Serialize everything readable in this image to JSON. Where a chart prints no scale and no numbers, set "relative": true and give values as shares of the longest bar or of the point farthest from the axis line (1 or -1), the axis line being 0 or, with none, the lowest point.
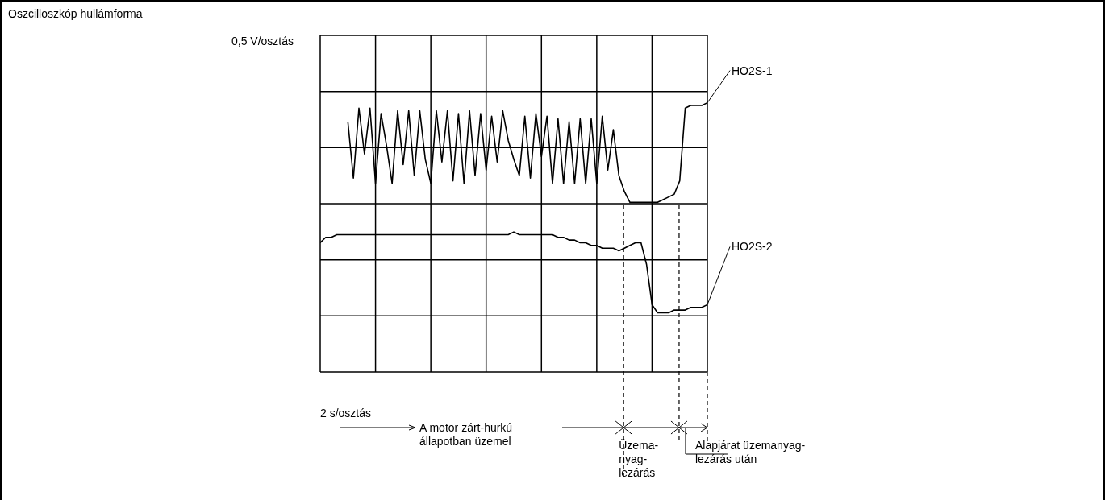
{
  "chart_data": {
    "type": "line",
    "title": "Oszcilloszkóp hullámforma",
    "relative": true,
    "grid": true,
    "marker": "none",
    "line_style": "solid",
    "categories": [
      null,
      null,
      null,
      null,
      null,
      null,
      null,
      null,
      null,
      null,
      null,
      null,
      null,
      null,
      null,
      null,
      null,
      null,
      null,
      null,
      null,
      null,
      null,
      null,
      null,
      null,
      null,
      null,
      null,
      null,
      null,
      null,
      null,
      null,
      null,
      null,
      null,
      null,
      null,
      null,
      null,
      null,
      null,
      null,
      null,
      null,
      null,
      null,
      null,
      null,
      null,
      null,
      null,
      null,
      null,
      null,
      null,
      null,
      null,
      null,
      null,
      null,
      null,
      null,
      null,
      null,
      null,
      null,
      null,
      null,
      null
    ],
    "series": [
      {
        "name": "HO2S-1",
        "color": "#000000",
        "values": [
          null,
          null,
          null,
          null,
          null,
          0.93,
          0.72,
          0.98,
          0.81,
          0.98,
          0.7,
          0.96,
          0.84,
          0.7,
          0.97,
          0.77,
          0.97,
          0.73,
          0.97,
          0.79,
          0.7,
          0.97,
          0.78,
          0.97,
          0.71,
          0.96,
          0.7,
          0.97,
          0.73,
          0.96,
          0.75,
          0.95,
          0.78,
          0.97,
          0.86,
          0.79,
          0.73,
          0.95,
          0.72,
          0.96,
          0.8,
          0.95,
          0.7,
          0.94,
          0.7,
          0.93,
          0.7,
          0.94,
          0.7,
          0.94,
          0.7,
          0.95,
          0.75,
          0.9,
          0.73,
          0.67,
          0.63,
          0.63,
          0.63,
          0.63,
          0.63,
          0.63,
          0.64,
          0.65,
          0.66,
          0.71,
          0.98,
          0.99,
          0.99,
          0.99,
          1
        ]
      },
      {
        "name": "HO2S-2",
        "color": "#000000",
        "values": [
          0.48,
          0.5,
          0.5,
          0.51,
          0.51,
          0.51,
          0.51,
          0.51,
          0.51,
          0.51,
          0.51,
          0.51,
          0.51,
          0.51,
          0.51,
          0.51,
          0.51,
          0.51,
          0.51,
          0.51,
          0.51,
          0.51,
          0.51,
          0.51,
          0.51,
          0.51,
          0.51,
          0.51,
          0.51,
          0.51,
          0.51,
          0.51,
          0.51,
          0.51,
          0.51,
          0.52,
          0.51,
          0.51,
          0.51,
          0.51,
          0.51,
          0.51,
          0.51,
          0.5,
          0.5,
          0.49,
          0.49,
          0.48,
          0.48,
          0.47,
          0.47,
          0.46,
          0.46,
          0.46,
          0.45,
          0.46,
          0.47,
          0.48,
          0.48,
          0.4,
          0.25,
          0.22,
          0.22,
          0.22,
          0.23,
          0.23,
          0.23,
          0.24,
          0.24,
          0.24,
          0.25
        ]
      }
    ],
    "annotations": [
      "0,5 V/osztás",
      "2 s/osztás",
      "A motor zárt-hurkú\nállapotban üzemel",
      "Üzema-\nnyag-\nlezárás",
      "Alapjárat üzemanyag-\nlezárás után"
    ]
  }
}
